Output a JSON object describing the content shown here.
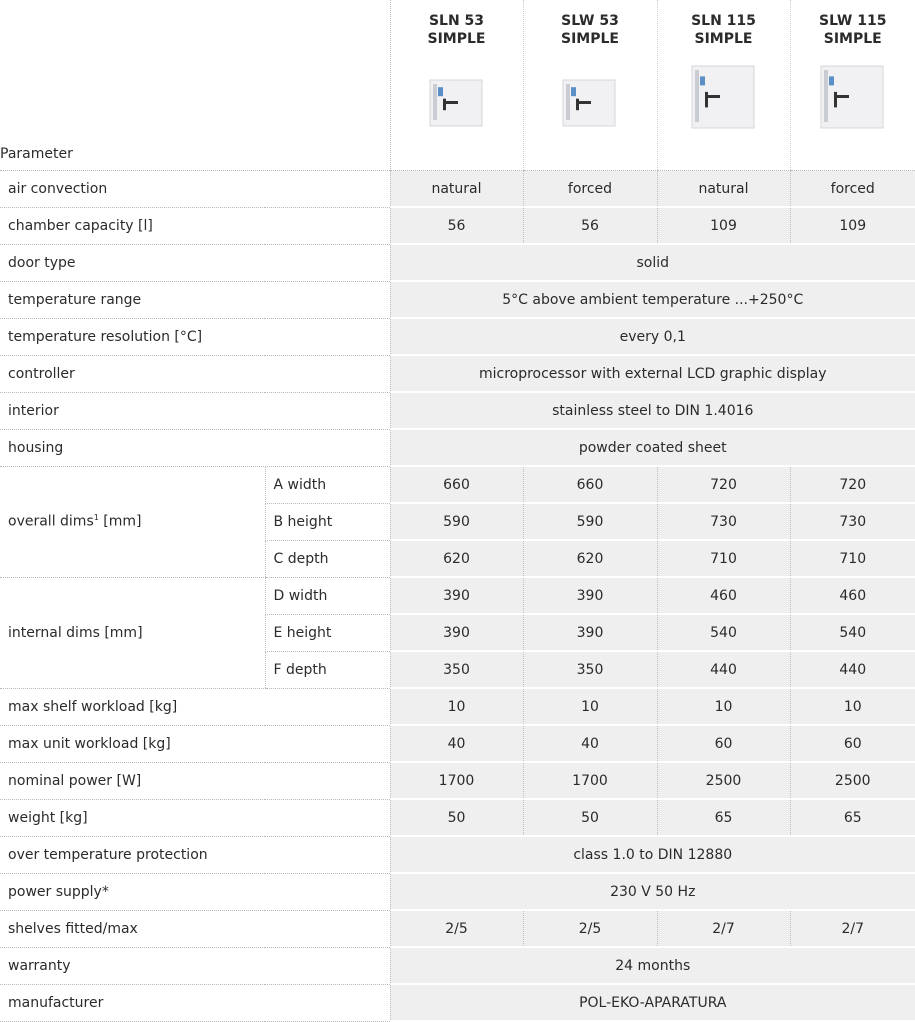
{
  "header": {
    "parameter": "Parameter",
    "products": [
      {
        "name": "SLN 53",
        "variant": "SIMPLE"
      },
      {
        "name": "SLW 53",
        "variant": "SIMPLE"
      },
      {
        "name": "SLN 115",
        "variant": "SIMPLE"
      },
      {
        "name": "SLW 115",
        "variant": "SIMPLE"
      }
    ]
  },
  "rows": [
    {
      "label": "air convection",
      "values": [
        "natural",
        "forced",
        "natural",
        "forced"
      ]
    },
    {
      "label": "chamber capacity [l]",
      "values": [
        56,
        56,
        109,
        109
      ]
    },
    {
      "label": "door type",
      "value": "solid"
    },
    {
      "label": "temperature range",
      "value": "5°C above ambient temperature ...+250°C"
    },
    {
      "label": "temperature resolution [°C]",
      "value": "every 0,1"
    },
    {
      "label": "controller",
      "value": "microprocessor with external LCD graphic display"
    },
    {
      "label": "interior",
      "value": "stainless steel to DIN 1.4016"
    },
    {
      "label": "housing",
      "value": "powder coated sheet"
    },
    {
      "label": "overall dims",
      "footnote": "1",
      "unit": "[mm]",
      "subrows": [
        {
          "label": "A width",
          "values": [
            660,
            660,
            720,
            720
          ]
        },
        {
          "label": "B height",
          "values": [
            590,
            590,
            730,
            730
          ]
        },
        {
          "label": "C depth",
          "values": [
            620,
            620,
            710,
            710
          ]
        }
      ]
    },
    {
      "label": "internal dims [mm]",
      "subrows": [
        {
          "label": "D width",
          "values": [
            390,
            390,
            460,
            460
          ]
        },
        {
          "label": "E height",
          "values": [
            390,
            390,
            540,
            540
          ]
        },
        {
          "label": "F depth",
          "values": [
            350,
            350,
            440,
            440
          ]
        }
      ]
    },
    {
      "label": "max shelf workload [kg]",
      "values": [
        10,
        10,
        10,
        10
      ]
    },
    {
      "label": "max unit workload [kg]",
      "values": [
        40,
        40,
        60,
        60
      ]
    },
    {
      "label": "nominal power [W]",
      "values": [
        1700,
        1700,
        2500,
        2500
      ]
    },
    {
      "label": "weight [kg]",
      "values": [
        50,
        50,
        65,
        65
      ]
    },
    {
      "label": "over temperature protection",
      "value": "class 1.0 to DIN 12880"
    },
    {
      "label": "power supply*",
      "value": "230 V 50 Hz"
    },
    {
      "label": "shelves fitted/max",
      "values": [
        "2/5",
        "2/5",
        "2/7",
        "2/7"
      ]
    },
    {
      "label": "warranty",
      "value": "24 months"
    },
    {
      "label": "manufacturer",
      "value": "POL-EKO-APARATURA"
    }
  ]
}
